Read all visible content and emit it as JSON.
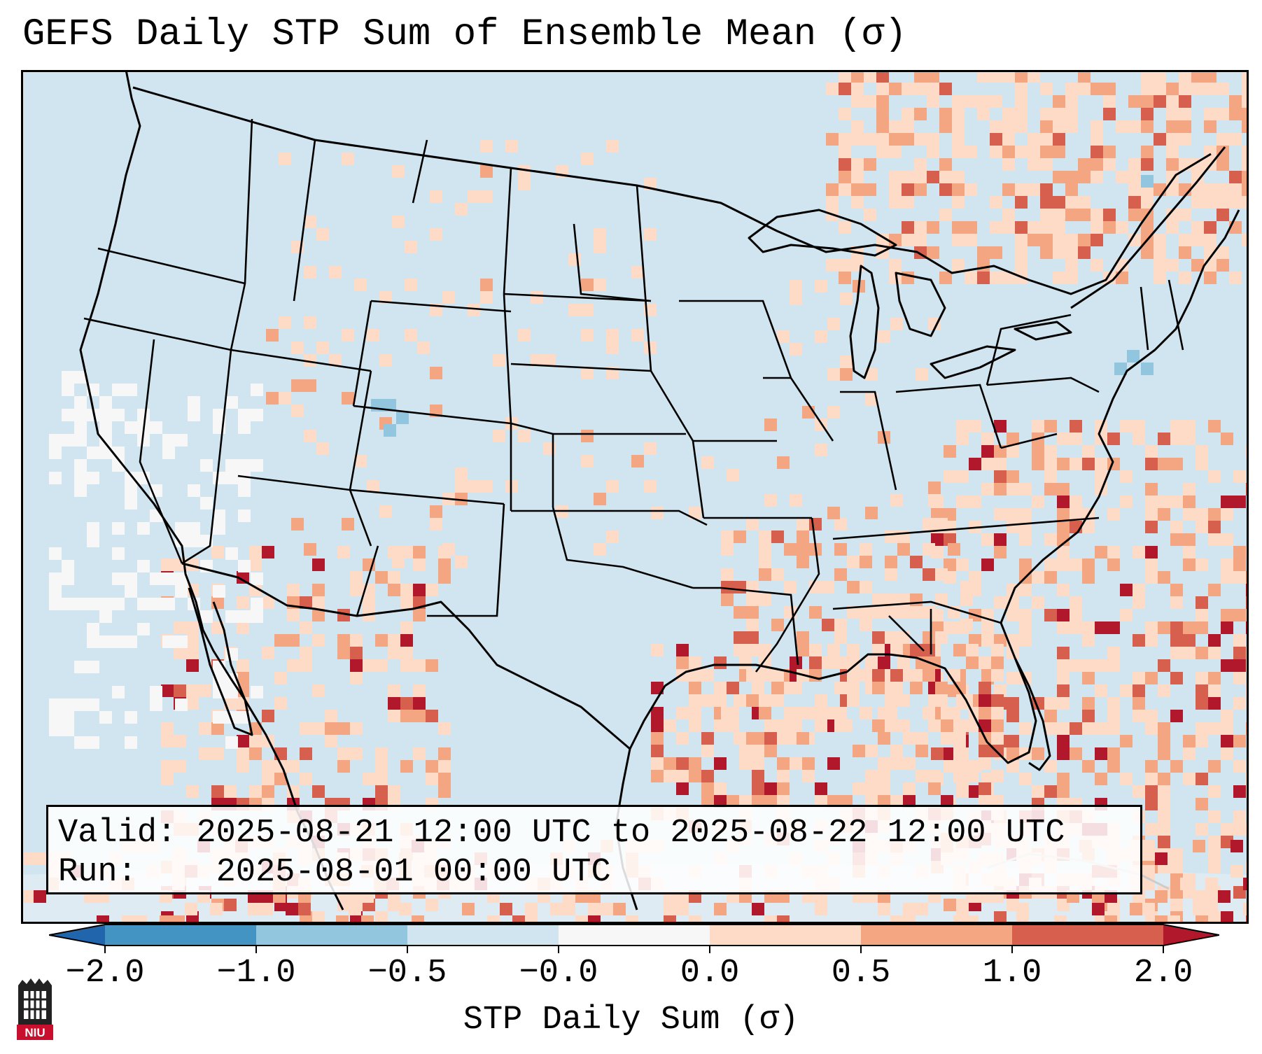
{
  "title": "GEFS Daily STP Sum of Ensemble Mean (σ)",
  "info": {
    "valid_label": "Valid:",
    "valid_value": "2025-08-21 12:00 UTC to 2025-08-22 12:00 UTC",
    "run_label": "Run:",
    "run_value": "2025-08-01 00:00 UTC"
  },
  "colorbar": {
    "label": "STP Daily Sum (σ)",
    "ticks": [
      "−2.0",
      "−1.0",
      "−0.5",
      "−0.0",
      "0.0",
      "0.5",
      "1.0",
      "2.0"
    ],
    "bins": [
      {
        "color": "#4393c3"
      },
      {
        "color": "#92c5de"
      },
      {
        "color": "#d1e5f0"
      },
      {
        "color": "#f7f7f7"
      },
      {
        "color": "#fddbc7"
      },
      {
        "color": "#f4a582"
      },
      {
        "color": "#d6604d"
      }
    ],
    "under_color": "#2166ac",
    "over_color": "#b2182b"
  },
  "map": {
    "background_color": "#d1e5f0",
    "field_levels": {
      "light_positive": "#fddbc7",
      "moderate_positive": "#f4a582",
      "strong_positive": "#d6604d",
      "extreme_positive": "#b2182b",
      "near_zero": "#f7f7f7",
      "slight_negative": "#92c5de"
    }
  },
  "logo": {
    "text": "NIU",
    "icon": "niu-logo-icon"
  }
}
